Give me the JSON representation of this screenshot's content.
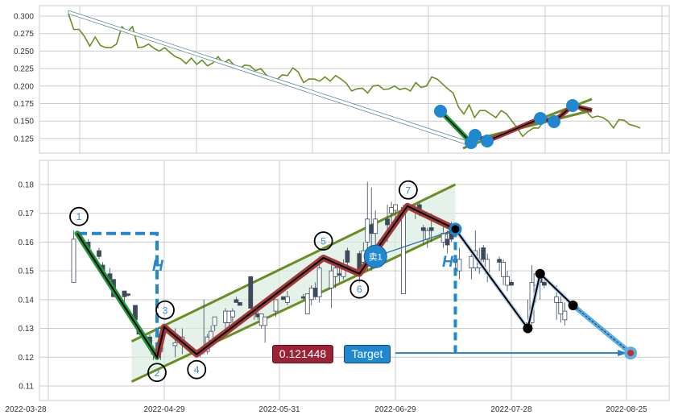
{
  "colors": {
    "up_stroke": "#3d4a5c",
    "down_fill": "#3d4a5c",
    "price_line": "#6b8e23",
    "channel": "#6b8e23",
    "zigzag": "#a33a3a",
    "impulse": "#1e9a3c",
    "accent_blue": "#1f88d0",
    "target_label": "#9b2335",
    "grid": "#cccccc"
  },
  "chart_data": [
    {
      "type": "line",
      "panel": "overview",
      "ylim": [
        0.105,
        0.31
      ],
      "yticks": [
        "0.300",
        "0.275",
        "0.250",
        "0.225",
        "0.200",
        "0.175",
        "0.150",
        "0.125"
      ],
      "grid": true,
      "close": [
        0.303,
        0.281,
        0.281,
        0.271,
        0.257,
        0.27,
        0.258,
        0.255,
        0.255,
        0.26,
        0.285,
        0.277,
        0.285,
        0.255,
        0.256,
        0.26,
        0.254,
        0.25,
        0.255,
        0.248,
        0.242,
        0.239,
        0.232,
        0.24,
        0.231,
        0.237,
        0.229,
        0.233,
        0.242,
        0.232,
        0.238,
        0.23,
        0.225,
        0.23,
        0.229,
        0.222,
        0.225,
        0.216,
        0.21,
        0.209,
        0.216,
        0.215,
        0.226,
        0.22,
        0.205,
        0.21,
        0.21,
        0.207,
        0.213,
        0.207,
        0.215,
        0.21,
        0.204,
        0.193,
        0.196,
        0.197,
        0.19,
        0.2,
        0.201,
        0.195,
        0.196,
        0.2,
        0.195,
        0.197,
        0.193,
        0.205,
        0.198,
        0.2,
        0.213,
        0.21,
        0.203,
        0.196,
        0.19,
        0.17,
        0.16,
        0.173,
        0.155,
        0.165,
        0.165,
        0.16,
        0.155,
        0.165,
        0.16,
        0.15,
        0.14,
        0.128,
        0.135,
        0.14,
        0.14,
        0.15,
        0.155,
        0.155,
        0.16,
        0.16,
        0.167,
        0.17,
        0.165,
        0.163,
        0.155,
        0.157,
        0.155,
        0.15,
        0.14,
        0.152,
        0.151,
        0.145,
        0.143,
        0.14
      ]
    },
    {
      "type": "candlestick",
      "panel": "main",
      "ylim": [
        0.105,
        0.185
      ],
      "yticks": [
        "0.18",
        "0.17",
        "0.16",
        "0.15",
        "0.14",
        "0.13",
        "0.12",
        "0.11"
      ],
      "xticks": [
        "2022-03-28",
        "2022-04-29",
        "2022-05-31",
        "2022-06-29",
        "2022-07-28",
        "2022-08-25"
      ],
      "grid": true,
      "candle_fields": [
        "date",
        "open",
        "high",
        "low",
        "close"
      ],
      "candles": [
        [
          "2022-04-04",
          0.146,
          0.164,
          0.146,
          0.161
        ],
        [
          "2022-04-08",
          0.16,
          0.161,
          0.157,
          0.158
        ],
        [
          "2022-04-11",
          0.157,
          0.158,
          0.154,
          0.155
        ],
        [
          "2022-04-12",
          0.152,
          0.153,
          0.149,
          0.149
        ],
        [
          "2022-04-13",
          0.147,
          0.148,
          0.147,
          0.148
        ],
        [
          "2022-04-14",
          0.149,
          0.151,
          0.147,
          0.147
        ],
        [
          "2022-04-15",
          0.147,
          0.147,
          0.141,
          0.141
        ],
        [
          "2022-04-18",
          0.143,
          0.143,
          0.139,
          0.141
        ],
        [
          "2022-04-19",
          0.142,
          0.142,
          0.141,
          0.1415
        ],
        [
          "2022-04-21",
          0.138,
          0.138,
          0.133,
          0.133
        ],
        [
          "2022-04-22",
          0.13,
          0.131,
          0.128,
          0.128
        ],
        [
          "2022-04-25",
          0.127,
          0.128,
          0.124,
          0.124
        ],
        [
          "2022-04-26",
          0.121,
          0.123,
          0.119,
          0.122
        ],
        [
          "2022-04-28",
          0.122,
          0.13,
          0.119,
          0.13
        ],
        [
          "2022-05-02",
          0.124,
          0.13,
          0.12,
          0.125
        ],
        [
          "2022-05-04",
          0.126,
          0.13,
          0.121,
          0.127
        ],
        [
          "2022-05-09",
          0.121,
          0.122,
          0.12,
          0.122
        ],
        [
          "2022-05-10",
          0.122,
          0.14,
          0.121,
          0.123
        ],
        [
          "2022-05-11",
          0.122,
          0.128,
          0.121,
          0.127
        ],
        [
          "2022-05-12",
          0.125,
          0.131,
          0.124,
          0.129
        ],
        [
          "2022-05-13",
          0.131,
          0.134,
          0.129,
          0.134
        ],
        [
          "2022-05-16",
          0.132,
          0.137,
          0.13,
          0.136
        ],
        [
          "2022-05-17",
          0.132,
          0.136,
          0.131,
          0.136
        ],
        [
          "2022-05-18",
          0.134,
          0.137,
          0.132,
          0.136
        ],
        [
          "2022-05-19",
          0.14,
          0.141,
          0.139,
          0.139
        ],
        [
          "2022-05-20",
          0.139,
          0.139,
          0.138,
          0.138
        ],
        [
          "2022-05-23",
          0.148,
          0.148,
          0.137,
          0.137
        ],
        [
          "2022-05-24",
          0.136,
          0.137,
          0.133,
          0.135
        ],
        [
          "2022-05-25",
          0.135,
          0.136,
          0.133,
          0.134
        ],
        [
          "2022-05-26",
          0.131,
          0.135,
          0.13,
          0.135
        ],
        [
          "2022-05-27",
          0.131,
          0.134,
          0.125,
          0.134
        ],
        [
          "2022-05-30",
          0.136,
          0.14,
          0.134,
          0.14
        ],
        [
          "2022-06-01",
          0.141,
          0.141,
          0.14,
          0.14
        ],
        [
          "2022-06-02",
          0.139,
          0.143,
          0.138,
          0.141
        ],
        [
          "2022-06-06",
          0.141,
          0.142,
          0.14,
          0.1405
        ],
        [
          "2022-06-07",
          0.135,
          0.142,
          0.135,
          0.142
        ],
        [
          "2022-06-08",
          0.14,
          0.145,
          0.138,
          0.144
        ],
        [
          "2022-06-09",
          0.144,
          0.146,
          0.14,
          0.141
        ],
        [
          "2022-06-10",
          0.141,
          0.155,
          0.139,
          0.151
        ],
        [
          "2022-06-13",
          0.144,
          0.152,
          0.137,
          0.15
        ],
        [
          "2022-06-14",
          0.148,
          0.152,
          0.144,
          0.151
        ],
        [
          "2022-06-15",
          0.149,
          0.151,
          0.146,
          0.1485
        ],
        [
          "2022-06-16",
          0.148,
          0.154,
          0.147,
          0.152
        ],
        [
          "2022-06-17",
          0.157,
          0.158,
          0.152,
          0.153
        ],
        [
          "2022-06-20",
          0.156,
          0.157,
          0.146,
          0.15
        ],
        [
          "2022-06-21",
          0.153,
          0.16,
          0.15,
          0.157
        ],
        [
          "2022-06-22",
          0.16,
          0.181,
          0.15,
          0.168
        ],
        [
          "2022-06-23",
          0.166,
          0.179,
          0.15,
          0.163
        ],
        [
          "2022-06-24",
          0.163,
          0.171,
          0.158,
          0.168
        ],
        [
          "2022-06-27",
          0.168,
          0.173,
          0.16,
          0.166
        ],
        [
          "2022-06-28",
          0.17,
          0.174,
          0.166,
          0.172
        ],
        [
          "2022-06-29",
          0.171,
          0.173,
          0.168,
          0.173
        ],
        [
          "2022-07-01",
          0.142,
          0.173,
          0.142,
          0.172
        ],
        [
          "2022-07-04",
          0.172,
          0.173,
          0.168,
          0.171
        ],
        [
          "2022-07-05",
          0.173,
          0.174,
          0.169,
          0.171
        ],
        [
          "2022-07-06",
          0.165,
          0.166,
          0.159,
          0.164
        ],
        [
          "2022-07-07",
          0.161,
          0.165,
          0.158,
          0.164
        ],
        [
          "2022-07-08",
          0.165,
          0.17,
          0.16,
          0.164
        ],
        [
          "2022-07-11",
          0.16,
          0.166,
          0.158,
          0.163
        ],
        [
          "2022-07-12",
          0.161,
          0.164,
          0.156,
          0.159
        ],
        [
          "2022-07-13",
          0.166,
          0.167,
          0.16,
          0.161
        ],
        [
          "2022-07-14",
          0.154,
          0.155,
          0.15,
          0.153
        ],
        [
          "2022-07-15",
          0.15,
          0.158,
          0.147,
          0.154
        ],
        [
          "2022-07-18",
          0.151,
          0.157,
          0.147,
          0.155
        ],
        [
          "2022-07-19",
          0.151,
          0.164,
          0.15,
          0.157
        ],
        [
          "2022-07-20",
          0.151,
          0.158,
          0.149,
          0.154
        ],
        [
          "2022-07-21",
          0.158,
          0.159,
          0.153,
          0.154
        ],
        [
          "2022-07-22",
          0.149,
          0.156,
          0.146,
          0.154
        ],
        [
          "2022-07-25",
          0.154,
          0.155,
          0.15,
          0.153
        ],
        [
          "2022-07-26",
          0.148,
          0.154,
          0.145,
          0.153
        ],
        [
          "2022-07-27",
          0.145,
          0.15,
          0.143,
          0.148
        ],
        [
          "2022-07-28",
          0.146,
          0.147,
          0.145,
          0.145
        ],
        [
          "2022-08-01",
          0.132,
          0.14,
          0.13,
          0.131
        ],
        [
          "2022-08-02",
          0.132,
          0.152,
          0.13,
          0.146
        ],
        [
          "2022-08-03",
          0.145,
          0.15,
          0.139,
          0.149
        ],
        [
          "2022-08-04",
          0.148,
          0.149,
          0.14,
          0.146
        ],
        [
          "2022-08-05",
          0.146,
          0.147,
          0.144,
          0.145
        ],
        [
          "2022-08-08",
          0.139,
          0.145,
          0.133,
          0.141
        ],
        [
          "2022-08-09",
          0.135,
          0.142,
          0.132,
          0.139
        ],
        [
          "2022-08-10",
          0.133,
          0.139,
          0.131,
          0.136
        ]
      ],
      "pattern_points": [
        {
          "label": "1",
          "date": "2022-04-05",
          "value": 0.163
        },
        {
          "label": "2",
          "date": "2022-04-27",
          "value": 0.12
        },
        {
          "label": "3",
          "date": "2022-04-29",
          "value": 0.1305
        },
        {
          "label": "4",
          "date": "2022-05-08",
          "value": 0.121
        },
        {
          "label": "5",
          "date": "2022-06-11",
          "value": 0.1545
        },
        {
          "label": "6",
          "date": "2022-06-20",
          "value": 0.149
        },
        {
          "label": "7",
          "date": "2022-07-02",
          "value": 0.1725
        }
      ],
      "breakout_point": {
        "date": "2022-07-14",
        "value": 0.1645
      },
      "channel": {
        "start_date": "2022-04-20",
        "end_date": "2022-07-14",
        "upper": [
          0.1255,
          0.18
        ],
        "lower": [
          0.1115,
          0.1645
        ]
      },
      "projection_path": [
        [
          "2022-07-14",
          0.1645
        ],
        [
          "2022-08-01",
          0.13
        ],
        [
          "2022-08-04",
          0.149
        ],
        [
          "2022-08-12",
          0.138
        ]
      ],
      "target": {
        "date": "2022-08-26",
        "value": 0.121448,
        "value_label": "0.121448",
        "label": "Target",
        "arrow_from": "2022-06-29"
      },
      "height_marker": "H",
      "sell_signal": {
        "label": "卖1",
        "date": "2022-06-24",
        "value": 0.155
      }
    }
  ]
}
